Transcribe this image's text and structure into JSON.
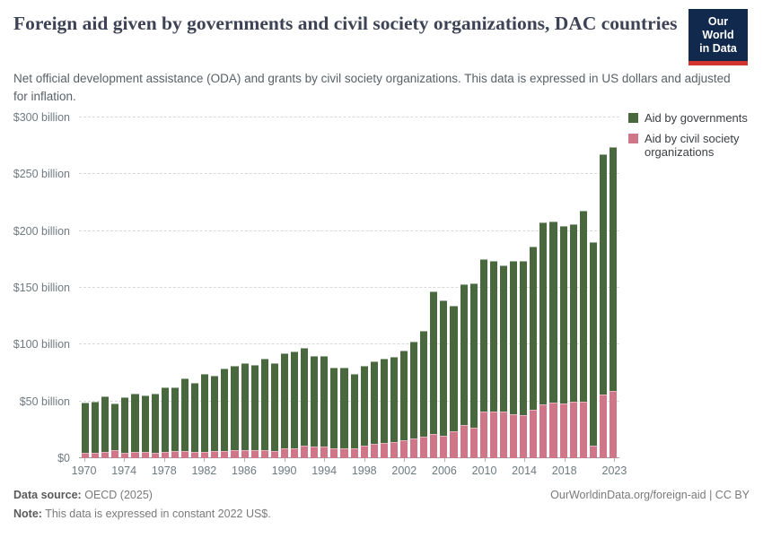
{
  "header": {
    "title": "Foreign aid given by governments and civil society organizations, DAC countries",
    "subtitle": "Net official development assistance (ODA) and grants by civil society organizations. This data is expressed in US dollars and adjusted for inflation.",
    "logo": {
      "line1": "Our World",
      "line2": "in Data",
      "bg_color": "#12294e",
      "accent_color": "#d0342c"
    }
  },
  "legend": {
    "items": [
      {
        "label": "Aid by governments",
        "color": "#4a683e"
      },
      {
        "label": "Aid by civil society organizations",
        "color": "#cf7688"
      }
    ]
  },
  "chart_data": {
    "type": "bar",
    "stacked": true,
    "title": "Foreign aid given by governments and civil society organizations, DAC countries",
    "unit": "US$ billion, constant 2022 prices",
    "ylim": [
      0,
      300
    ],
    "grid": true,
    "legend_position": "right",
    "x": [
      1970,
      1971,
      1972,
      1973,
      1974,
      1975,
      1976,
      1977,
      1978,
      1979,
      1980,
      1981,
      1982,
      1983,
      1984,
      1985,
      1986,
      1987,
      1988,
      1989,
      1990,
      1991,
      1992,
      1993,
      1994,
      1995,
      1996,
      1997,
      1998,
      1999,
      2000,
      2001,
      2002,
      2003,
      2004,
      2005,
      2006,
      2007,
      2008,
      2009,
      2010,
      2011,
      2012,
      2013,
      2014,
      2015,
      2016,
      2017,
      2018,
      2019,
      2020,
      2021,
      2022,
      2023
    ],
    "series": [
      {
        "name": "Aid by civil society organizations",
        "color": "#cf7688",
        "values": [
          5,
          5,
          5.5,
          7,
          5,
          5.5,
          5.5,
          5,
          5.5,
          6,
          6,
          5.5,
          5.5,
          6,
          6,
          7,
          7,
          7,
          7,
          6,
          9,
          9,
          11,
          10,
          10,
          9,
          8.5,
          9,
          11,
          13,
          13.5,
          14,
          15.5,
          17,
          19,
          21,
          19.5,
          24,
          29,
          27,
          41,
          41,
          41,
          39,
          38,
          42.5,
          47,
          49,
          48,
          49.5,
          50,
          11,
          56,
          59
        ]
      },
      {
        "name": "Aid by governments",
        "color": "#4a683e",
        "values": [
          44,
          45,
          49,
          41,
          49,
          51,
          49.5,
          51.5,
          57,
          56.5,
          64,
          60.5,
          69,
          67,
          73,
          74.5,
          77,
          75,
          80.5,
          78,
          83,
          85,
          86,
          80,
          80,
          71,
          71.5,
          65.5,
          70.5,
          72,
          74,
          75,
          79.5,
          86,
          93,
          125.5,
          119.5,
          110,
          124.5,
          127,
          134,
          133,
          129,
          135,
          135.5,
          144,
          161,
          159.5,
          156.5,
          156.5,
          168,
          179,
          212,
          215
        ]
      }
    ],
    "y_ticks": [
      {
        "value": 0,
        "label": "$0"
      },
      {
        "value": 50,
        "label": "$50 billion"
      },
      {
        "value": 100,
        "label": "$100 billion"
      },
      {
        "value": 150,
        "label": "$150 billion"
      },
      {
        "value": 200,
        "label": "$200 billion"
      },
      {
        "value": 250,
        "label": "$250 billion"
      },
      {
        "value": 300,
        "label": "$300 billion"
      }
    ],
    "x_ticks": [
      1970,
      1974,
      1978,
      1982,
      1986,
      1990,
      1994,
      1998,
      2002,
      2006,
      2010,
      2014,
      2018,
      2023
    ]
  },
  "footer": {
    "source_label": "Data source:",
    "source_value": "OECD (2025)",
    "note_label": "Note:",
    "note_value": "This data is expressed in constant 2022 US$.",
    "link": "OurWorldinData.org/foreign-aid | CC BY"
  }
}
